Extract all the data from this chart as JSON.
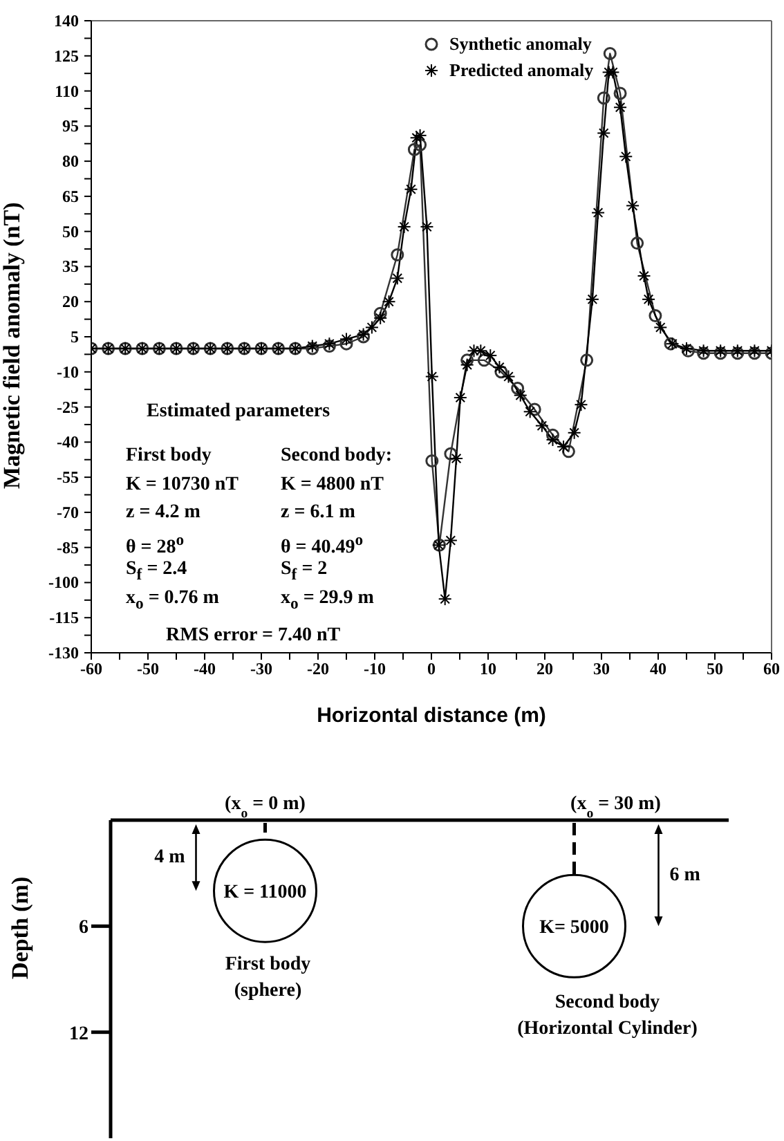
{
  "chart_data": [
    {
      "type": "line",
      "xlabel": "Horizontal distance (m)",
      "ylabel": "Magnetic field anomaly (nT)",
      "xlim": [
        -60,
        60
      ],
      "ylim": [
        -130,
        140
      ],
      "xticks": [
        -60,
        {
          "value": -55,
          "label": null
        },
        -50,
        {
          "value": -45,
          "label": null
        },
        -40,
        {
          "value": -35,
          "label": null
        },
        -30,
        {
          "value": -25,
          "label": null
        },
        -20,
        {
          "value": -15,
          "label": null
        },
        -10,
        {
          "value": -5,
          "label": null
        },
        0,
        {
          "value": 5,
          "label": null
        },
        10,
        {
          "value": 15,
          "label": null
        },
        20,
        {
          "value": 25,
          "label": null
        },
        30,
        {
          "value": 35,
          "label": null
        },
        40,
        {
          "value": 45,
          "label": null
        },
        50,
        {
          "value": 55,
          "label": null
        },
        60
      ],
      "yticks": [
        -130,
        {
          "value": -122.5,
          "label": null
        },
        -115,
        {
          "value": -107.5,
          "label": null
        },
        -100,
        {
          "value": -92.5,
          "label": null
        },
        -85,
        {
          "value": -77.5,
          "label": null
        },
        -70,
        {
          "value": -62.5,
          "label": null
        },
        -55,
        {
          "value": -47.5,
          "label": null
        },
        -40,
        {
          "value": -32.5,
          "label": null
        },
        -25,
        {
          "value": -17.5,
          "label": null
        },
        -10,
        {
          "value": -2.5,
          "label": null
        },
        5,
        {
          "value": 12.5,
          "label": null
        },
        20,
        {
          "value": 27.5,
          "label": null
        },
        35,
        {
          "value": 42.5,
          "label": null
        },
        50,
        {
          "value": 57.5,
          "label": null
        },
        65,
        {
          "value": 72.5,
          "label": null
        },
        80,
        {
          "value": 87.5,
          "label": null
        },
        95,
        {
          "value": 102.5,
          "label": null
        },
        110,
        {
          "value": 117.5,
          "label": null
        },
        125,
        {
          "value": 132.5,
          "label": null
        },
        140
      ],
      "grid": false,
      "legend": "top right",
      "line_style": "solid",
      "series": [
        {
          "name": "Synthetic anomaly",
          "color": "#333333",
          "marker": "circle",
          "x": [
            -60,
            -57,
            -54,
            -51,
            -48,
            -45,
            -42,
            -39,
            -36,
            -33,
            -30,
            -27,
            -24,
            -21,
            -18,
            -15,
            -12,
            -9,
            -6,
            -3,
            -2,
            0.1,
            1.4,
            3.4,
            6.3,
            9.3,
            12.3,
            15.2,
            18.2,
            21.4,
            24.2,
            27.4,
            30.4,
            31.5,
            33.3,
            36.3,
            39.5,
            42.2,
            45.3,
            48,
            51,
            54,
            57,
            60
          ],
          "values": [
            0,
            0,
            0,
            0,
            0,
            0,
            0,
            0,
            0,
            0,
            0,
            0,
            0,
            0,
            1,
            2,
            5,
            15,
            40,
            85,
            87,
            -48,
            -84,
            -45,
            -5,
            -5,
            -10,
            -17,
            -26,
            -37,
            -44,
            -5,
            107,
            126,
            109,
            45,
            14,
            2,
            -1,
            -2,
            -2,
            -2,
            -2,
            -2
          ]
        },
        {
          "name": "Predicted anomaly",
          "color": "#000000",
          "marker": "cross",
          "x": [
            -60,
            -57,
            -54,
            -51,
            -48,
            -45,
            -42,
            -39,
            -36,
            -33,
            -30,
            -27,
            -24,
            -21,
            -18,
            -15,
            -12,
            -10.5,
            -9,
            -7.5,
            -6,
            -4.8,
            -3.6,
            -2.6,
            -2,
            -0.8,
            0.1,
            1.3,
            2.4,
            3.4,
            4.4,
            5.1,
            6.3,
            7.5,
            8.7,
            10.4,
            12,
            13.6,
            15.7,
            17.4,
            19.5,
            21.4,
            23.3,
            25.2,
            26.4,
            28.4,
            29.4,
            30.4,
            31.3,
            32,
            33.3,
            34.3,
            35.5,
            37.5,
            38.3,
            40.4,
            42.5,
            45,
            48,
            51,
            54,
            57,
            60
          ],
          "values": [
            0,
            0,
            0,
            0,
            0,
            0,
            0,
            0,
            0,
            0,
            0,
            0,
            0,
            1,
            2,
            4,
            6,
            9,
            13,
            20,
            30,
            52,
            68,
            90,
            91,
            52,
            -12,
            -84,
            -107,
            -82,
            -47,
            -21,
            -7,
            -1,
            -1,
            -3,
            -8,
            -12,
            -20,
            -27,
            -33,
            -39,
            -42,
            -36,
            -24,
            21,
            58,
            92,
            118,
            118,
            103,
            82,
            61,
            31,
            21,
            9,
            2,
            0,
            -1,
            -1,
            -1,
            -1,
            -1
          ]
        }
      ],
      "annotations": [
        "Estimated parameters",
        "First body",
        "K = 10730 nT",
        "z = 4.2 m",
        "θ = 28$^{o}$",
        "S$_{f}$ = 2.4",
        "x$_{o}$ = 0.76 m",
        "Second body:",
        "K = 4800 nT",
        "z = 6.1 m",
        "θ = 40.49$^{o}$",
        "S$_{f}$ = 2",
        "x$_{o}$ = 29.9 m",
        "RMS error = 7.40 nT"
      ]
    },
    {
      "type": "scatter",
      "ylabel": "Depth (m)",
      "ylim": [
        18,
        0
      ],
      "yticks": [
        6,
        12
      ],
      "categories": [
        null,
        null
      ],
      "values": [
        4,
        6
      ],
      "color": "#000000",
      "marker": "circle",
      "tick_labels": "y",
      "annotations": [
        "(x$_{o}$ = 0 m)",
        "(x$_{o}$ = 30 m)",
        "4 m",
        "6 m",
        "K = 11000",
        "K= 5000",
        "First body",
        "(sphere)",
        "Second body",
        "(Horizontal Cylinder)"
      ]
    }
  ]
}
